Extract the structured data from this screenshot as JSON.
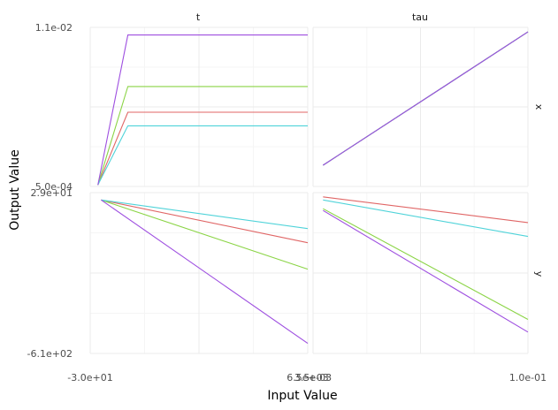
{
  "chart_data": {
    "type": "line",
    "title": "",
    "xlabel": "Input Value",
    "ylabel": "Output Value",
    "facet_columns": [
      "t",
      "tau"
    ],
    "facet_rows": [
      "x",
      "y"
    ],
    "x_tick_labels": {
      "t": [
        "-3.0e+01",
        "6.5e+03"
      ],
      "tau": [
        "3.5e-03",
        "1.0e-01"
      ]
    },
    "y_tick_labels": {
      "x": [
        "1.1e-02",
        "5.0e-04"
      ],
      "y": [
        "2.9e+01",
        "-6.1e+02"
      ]
    },
    "series_colors": [
      "#e06666",
      "#8bd446",
      "#4fd3d9",
      "#9e4fe0"
    ],
    "panels": [
      {
        "col": "t",
        "row": "x",
        "xlim": [
          -30,
          6500
        ],
        "ylim": [
          0.0005,
          0.011
        ],
        "series": [
          {
            "color": "#e06666",
            "x": [
              200,
              1100,
              6500
            ],
            "y": [
              0.0006,
              0.0054,
              0.0054
            ]
          },
          {
            "color": "#8bd446",
            "x": [
              200,
              1100,
              6500
            ],
            "y": [
              0.0006,
              0.0071,
              0.0071
            ]
          },
          {
            "color": "#4fd3d9",
            "x": [
              200,
              1100,
              6500
            ],
            "y": [
              0.0006,
              0.0045,
              0.0045
            ]
          },
          {
            "color": "#9e4fe0",
            "x": [
              200,
              1100,
              6500
            ],
            "y": [
              0.0006,
              0.0105,
              0.0105
            ]
          }
        ]
      },
      {
        "col": "tau",
        "row": "x",
        "xlim": [
          0.0035,
          0.1
        ],
        "ylim": [
          0.0005,
          0.011
        ],
        "series": [
          {
            "color": "#e06666",
            "x": [
              0.008,
              0.1
            ],
            "y": [
              0.0019,
              0.0107
            ]
          },
          {
            "color": "#8bd446",
            "x": [
              0.008,
              0.1
            ],
            "y": [
              0.0019,
              0.0107
            ]
          },
          {
            "color": "#4fd3d9",
            "x": [
              0.008,
              0.1
            ],
            "y": [
              0.0019,
              0.0107
            ]
          },
          {
            "color": "#9e4fe0",
            "x": [
              0.008,
              0.1
            ],
            "y": [
              0.0019,
              0.0107
            ]
          }
        ]
      },
      {
        "col": "t",
        "row": "y",
        "xlim": [
          -30,
          6500
        ],
        "ylim": [
          -610,
          29
        ],
        "series": [
          {
            "color": "#e06666",
            "x": [
              300,
              6500
            ],
            "y": [
              0,
              -170
            ]
          },
          {
            "color": "#8bd446",
            "x": [
              300,
              6500
            ],
            "y": [
              0,
              -275
            ]
          },
          {
            "color": "#4fd3d9",
            "x": [
              300,
              6500
            ],
            "y": [
              0,
              -114
            ]
          },
          {
            "color": "#9e4fe0",
            "x": [
              300,
              6500
            ],
            "y": [
              0,
              -570
            ]
          }
        ]
      },
      {
        "col": "tau",
        "row": "y",
        "xlim": [
          0.0035,
          0.1
        ],
        "ylim": [
          -610,
          29
        ],
        "series": [
          {
            "color": "#e06666",
            "x": [
              0.008,
              0.1
            ],
            "y": [
              12,
              -90
            ]
          },
          {
            "color": "#8bd446",
            "x": [
              0.008,
              0.1
            ],
            "y": [
              -35,
              -475
            ]
          },
          {
            "color": "#4fd3d9",
            "x": [
              0.008,
              0.1
            ],
            "y": [
              0,
              -145
            ]
          },
          {
            "color": "#9e4fe0",
            "x": [
              0.008,
              0.1
            ],
            "y": [
              -42,
              -525
            ]
          }
        ]
      }
    ]
  }
}
